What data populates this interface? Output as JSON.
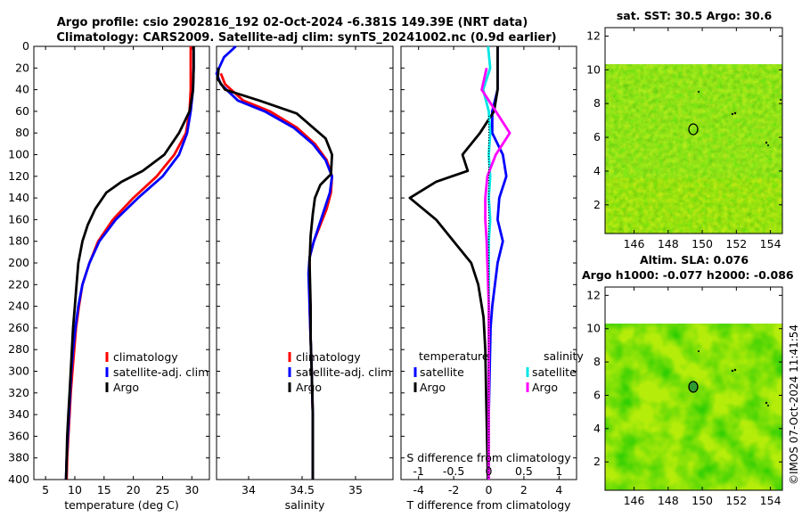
{
  "title_line1": "Argo profile: csio 2902816_192 02-Oct-2024 -6.381S 149.39E (NRT data)",
  "title_line2": "Climatology: CARS2009. Satellite-adj clim: synTS_20241002.nc (0.9d earlier)",
  "footer_stamp": "©IMOS 07-Oct-2024 11:41:54",
  "colors": {
    "climatology": "#ff0000",
    "satellite": "#0000ff",
    "argo": "#000000",
    "sat_salinity": "#00e5e5",
    "argo_salinity": "#ff00ff"
  },
  "chart_data": [
    {
      "id": "temperature",
      "type": "line",
      "xlabel": "temperature (deg C)",
      "ylabel": "",
      "xlim": [
        3,
        33
      ],
      "ylim": [
        400,
        0
      ],
      "xticks": [
        5,
        10,
        15,
        20,
        25,
        30
      ],
      "yticks": [
        0,
        20,
        40,
        60,
        80,
        100,
        120,
        140,
        160,
        180,
        200,
        220,
        240,
        260,
        280,
        300,
        320,
        340,
        360,
        380,
        400
      ],
      "legend": [
        "climatology",
        "satellite-adj. clim",
        "Argo"
      ],
      "series": [
        {
          "name": "climatology",
          "color": "#ff0000",
          "points": [
            [
              29.8,
              0
            ],
            [
              29.8,
              20
            ],
            [
              29.8,
              40
            ],
            [
              29.6,
              60
            ],
            [
              29.0,
              80
            ],
            [
              27.0,
              100
            ],
            [
              24.0,
              120
            ],
            [
              20.0,
              140
            ],
            [
              16.5,
              160
            ],
            [
              14.0,
              180
            ],
            [
              12.5,
              200
            ],
            [
              11.3,
              220
            ],
            [
              10.7,
              240
            ],
            [
              10.2,
              260
            ],
            [
              9.9,
              280
            ],
            [
              9.6,
              300
            ],
            [
              9.3,
              320
            ],
            [
              9.1,
              340
            ],
            [
              8.9,
              360
            ],
            [
              8.7,
              380
            ],
            [
              8.6,
              400
            ]
          ]
        },
        {
          "name": "satellite-adj. clim",
          "color": "#0000ff",
          "points": [
            [
              30.3,
              0
            ],
            [
              30.3,
              20
            ],
            [
              30.2,
              40
            ],
            [
              29.8,
              60
            ],
            [
              29.2,
              80
            ],
            [
              27.8,
              100
            ],
            [
              25.0,
              120
            ],
            [
              20.8,
              140
            ],
            [
              17.0,
              160
            ],
            [
              14.2,
              180
            ],
            [
              12.5,
              200
            ],
            [
              11.3,
              220
            ],
            [
              10.6,
              240
            ],
            [
              10.1,
              260
            ],
            [
              9.7,
              280
            ],
            [
              9.4,
              300
            ],
            [
              9.2,
              320
            ],
            [
              9.0,
              340
            ],
            [
              8.8,
              360
            ],
            [
              8.6,
              380
            ],
            [
              8.5,
              400
            ]
          ]
        },
        {
          "name": "Argo",
          "color": "#000000",
          "points": [
            [
              30.3,
              0
            ],
            [
              30.3,
              20
            ],
            [
              30.2,
              40
            ],
            [
              29.6,
              60
            ],
            [
              27.8,
              80
            ],
            [
              25.3,
              100
            ],
            [
              21.6,
              115
            ],
            [
              18.0,
              125
            ],
            [
              15.4,
              135
            ],
            [
              13.5,
              150
            ],
            [
              12.2,
              165
            ],
            [
              11.3,
              180
            ],
            [
              10.6,
              200
            ],
            [
              10.3,
              220
            ],
            [
              10.0,
              240
            ],
            [
              9.7,
              260
            ],
            [
              9.5,
              280
            ],
            [
              9.3,
              300
            ],
            [
              9.1,
              320
            ],
            [
              8.9,
              340
            ],
            [
              8.7,
              360
            ],
            [
              8.6,
              380
            ],
            [
              8.5,
              400
            ]
          ]
        }
      ]
    },
    {
      "id": "salinity",
      "type": "line",
      "xlabel": "salinity",
      "ylabel": "",
      "xlim": [
        33.7,
        35.35
      ],
      "ylim": [
        400,
        0
      ],
      "xticks": [
        34,
        34.5,
        35
      ],
      "legend": [
        "climatology",
        "satellite-adj. clim",
        "Argo"
      ],
      "series": [
        {
          "name": "climatology",
          "color": "#ff0000",
          "points": [
            [
              33.74,
              25
            ],
            [
              33.78,
              35
            ],
            [
              33.95,
              50
            ],
            [
              34.2,
              60
            ],
            [
              34.45,
              75
            ],
            [
              34.62,
              90
            ],
            [
              34.73,
              105
            ],
            [
              34.78,
              120
            ],
            [
              34.77,
              135
            ],
            [
              34.73,
              150
            ],
            [
              34.67,
              165
            ],
            [
              34.61,
              180
            ],
            [
              34.57,
              195
            ],
            [
              34.57,
              210
            ],
            [
              34.57,
              240
            ],
            [
              34.58,
              270
            ],
            [
              34.59,
              300
            ],
            [
              34.6,
              340
            ],
            [
              34.6,
              370
            ],
            [
              34.6,
              400
            ]
          ]
        },
        {
          "name": "satellite-adj. clim",
          "color": "#0000ff",
          "points": [
            [
              33.88,
              0
            ],
            [
              33.77,
              10
            ],
            [
              33.7,
              25
            ],
            [
              33.74,
              35
            ],
            [
              33.9,
              50
            ],
            [
              34.15,
              60
            ],
            [
              34.42,
              75
            ],
            [
              34.6,
              90
            ],
            [
              34.72,
              105
            ],
            [
              34.78,
              120
            ],
            [
              34.76,
              135
            ],
            [
              34.71,
              150
            ],
            [
              34.66,
              165
            ],
            [
              34.61,
              180
            ],
            [
              34.57,
              195
            ],
            [
              34.56,
              210
            ],
            [
              34.57,
              240
            ],
            [
              34.58,
              270
            ],
            [
              34.59,
              300
            ],
            [
              34.6,
              340
            ],
            [
              34.6,
              370
            ],
            [
              34.6,
              400
            ]
          ]
        },
        {
          "name": "Argo",
          "color": "#000000",
          "points": [
            [
              33.72,
              20
            ],
            [
              33.71,
              30
            ],
            [
              33.78,
              40
            ],
            [
              34.1,
              50
            ],
            [
              34.45,
              62
            ],
            [
              34.72,
              85
            ],
            [
              34.78,
              100
            ],
            [
              34.77,
              118
            ],
            [
              34.67,
              128
            ],
            [
              34.62,
              140
            ],
            [
              34.6,
              155
            ],
            [
              34.58,
              175
            ],
            [
              34.57,
              200
            ],
            [
              34.58,
              240
            ],
            [
              34.58,
              270
            ],
            [
              34.59,
              300
            ],
            [
              34.6,
              340
            ],
            [
              34.6,
              370
            ],
            [
              34.6,
              400
            ]
          ]
        }
      ]
    },
    {
      "id": "differences",
      "type": "line",
      "xlabel": "T difference from climatology",
      "xlabel_top": "S difference from climatology",
      "ylabel": "",
      "xlim": [
        -5,
        5
      ],
      "ylim": [
        400,
        0
      ],
      "xticks": [
        -4,
        -2,
        0,
        2,
        4
      ],
      "xticks_top": [
        -1,
        -0.5,
        0,
        0.5,
        1
      ],
      "xtick_labels_top": [
        "-1",
        "-0.5",
        "0",
        "0.5",
        "1"
      ],
      "legend_temperature_title": "temperature",
      "legend_salinity_title": "salinity",
      "legend_temperature": [
        "satellite",
        "Argo"
      ],
      "legend_salinity": [
        "satellite",
        "Argo"
      ],
      "series": [
        {
          "name": "temperature satellite",
          "color": "#0000ff",
          "axis": "T",
          "points": [
            [
              0.5,
              0
            ],
            [
              0.5,
              40
            ],
            [
              0.2,
              60
            ],
            [
              0.2,
              80
            ],
            [
              0.8,
              100
            ],
            [
              1.0,
              120
            ],
            [
              0.6,
              140
            ],
            [
              0.5,
              160
            ],
            [
              0.8,
              180
            ],
            [
              0.5,
              200
            ],
            [
              0.35,
              220
            ],
            [
              0.2,
              240
            ],
            [
              0.1,
              260
            ],
            [
              0.05,
              300
            ],
            [
              0.0,
              340
            ],
            [
              -0.05,
              400
            ]
          ]
        },
        {
          "name": "temperature Argo",
          "color": "#000000",
          "axis": "T",
          "points": [
            [
              0.5,
              0
            ],
            [
              0.5,
              40
            ],
            [
              0.3,
              60
            ],
            [
              -0.5,
              80
            ],
            [
              -1.5,
              100
            ],
            [
              -1.2,
              115
            ],
            [
              -3.0,
              125
            ],
            [
              -4.5,
              140
            ],
            [
              -3.0,
              160
            ],
            [
              -2.0,
              180
            ],
            [
              -1.0,
              200
            ],
            [
              -0.6,
              220
            ],
            [
              -0.3,
              250
            ],
            [
              -0.2,
              280
            ],
            [
              -0.15,
              320
            ],
            [
              -0.1,
              360
            ],
            [
              -0.05,
              400
            ]
          ]
        },
        {
          "name": "salinity satellite",
          "color": "#00e5e5",
          "axis": "S",
          "points": [
            [
              -0.01,
              0
            ],
            [
              0.02,
              20
            ],
            [
              -0.08,
              40
            ],
            [
              0.0,
              60
            ],
            [
              0.02,
              80
            ],
            [
              0.0,
              100
            ],
            [
              0.02,
              120
            ],
            [
              0.0,
              140
            ],
            [
              0.02,
              160
            ],
            [
              0.0,
              180
            ],
            [
              0.0,
              220
            ],
            [
              0.0,
              300
            ],
            [
              0.0,
              400
            ]
          ]
        },
        {
          "name": "salinity Argo",
          "color": "#ff00ff",
          "axis": "S",
          "points": [
            [
              -0.03,
              20
            ],
            [
              -0.1,
              40
            ],
            [
              0.1,
              60
            ],
            [
              0.3,
              80
            ],
            [
              0.1,
              100
            ],
            [
              -0.02,
              120
            ],
            [
              -0.05,
              140
            ],
            [
              -0.05,
              160
            ],
            [
              -0.03,
              180
            ],
            [
              -0.02,
              200
            ],
            [
              0.0,
              240
            ],
            [
              0.0,
              300
            ],
            [
              0.0,
              400
            ]
          ]
        }
      ]
    },
    {
      "id": "sst_map",
      "type": "heatmap",
      "title": "sat. SST: 30.5 Argo: 30.6",
      "xlim": [
        144.3,
        154.7
      ],
      "ylim": [
        0.3,
        12.5
      ],
      "data_ylim": [
        0.3,
        10.1
      ],
      "xticks": [
        146,
        148,
        150,
        152,
        154
      ],
      "yticks": [
        2,
        4,
        6,
        8,
        10,
        12
      ],
      "marker": [
        149.39,
        6.38
      ]
    },
    {
      "id": "sla_map",
      "type": "heatmap",
      "title": "Altim. SLA: 0.076",
      "subtitle": "Argo h1000: -0.077 h2000: -0.086",
      "xlim": [
        144.3,
        154.7
      ],
      "ylim": [
        0.3,
        12.5
      ],
      "data_ylim": [
        0.3,
        10.1
      ],
      "xticks": [
        146,
        148,
        150,
        152,
        154
      ],
      "yticks": [
        2,
        4,
        6,
        8,
        10,
        12
      ],
      "marker": [
        149.39,
        6.38
      ]
    }
  ]
}
